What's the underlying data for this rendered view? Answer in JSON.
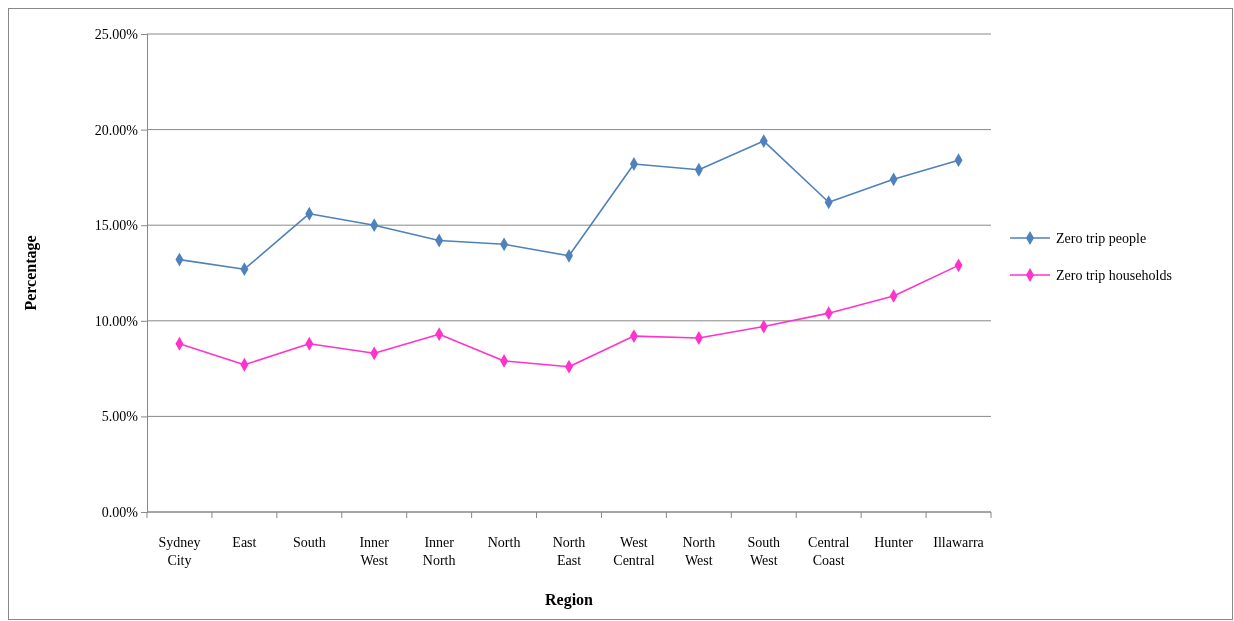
{
  "chart_data": {
    "type": "line",
    "xlabel": "Region",
    "ylabel": "Percentage",
    "categories": [
      "Sydney City",
      "East",
      "South",
      "Inner West",
      "Inner North",
      "North",
      "North East",
      "West Central",
      "North West",
      "South West",
      "Central Coast",
      "Hunter",
      "Illawarra"
    ],
    "series": [
      {
        "name": "Zero trip people",
        "color": "#4f81bd",
        "values": [
          13.2,
          12.7,
          15.6,
          15.0,
          14.2,
          14.0,
          13.4,
          18.2,
          17.9,
          19.4,
          16.2,
          17.4,
          18.4
        ]
      },
      {
        "name": "Zero trip households",
        "color": "#ff33cc",
        "values": [
          8.8,
          7.7,
          8.8,
          8.3,
          9.3,
          7.9,
          7.6,
          9.2,
          9.1,
          9.7,
          10.4,
          11.3,
          12.9
        ]
      }
    ],
    "ylim": [
      0,
      25
    ],
    "yticks": [
      {
        "value": 0,
        "label": "0.00%"
      },
      {
        "value": 5,
        "label": "5.00%"
      },
      {
        "value": 10,
        "label": "10.00%"
      },
      {
        "value": 15,
        "label": "15.00%"
      },
      {
        "value": 20,
        "label": "20.00%"
      },
      {
        "value": 25,
        "label": "25.00%"
      }
    ],
    "grid": "y",
    "legend": "right",
    "marker": "diamond",
    "line_style": "solid"
  }
}
